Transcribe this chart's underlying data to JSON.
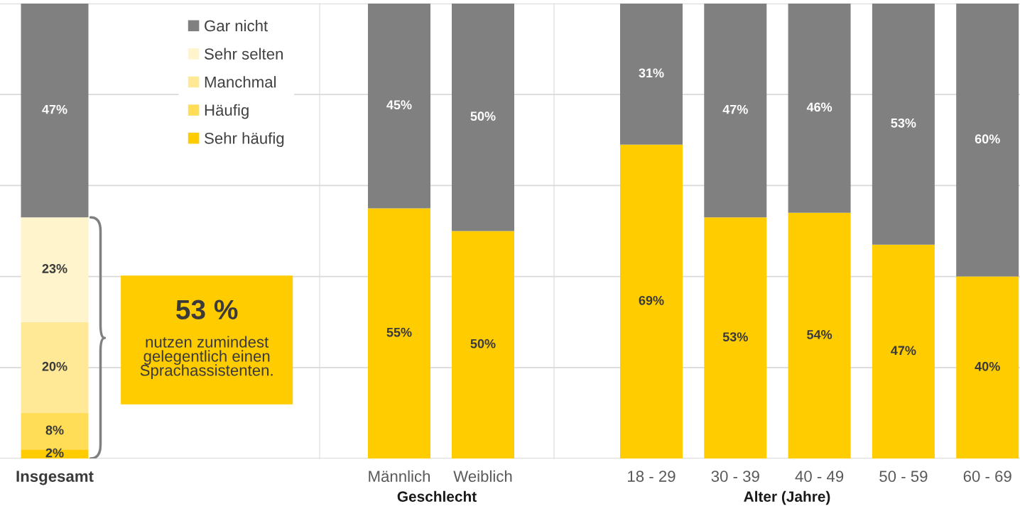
{
  "chart_data": [
    {
      "type": "bar",
      "stacked": true,
      "categories": [
        "Insgesamt"
      ],
      "grid": "y",
      "tick_labels": "x",
      "legend": "top right",
      "series": [
        {
          "name": "Sehr häufig",
          "color": "#ffcc00",
          "values": [
            2
          ],
          "value_labels": [
            "2%"
          ]
        },
        {
          "name": "Häufig",
          "color": "#ffdd57",
          "values": [
            8
          ],
          "value_labels": [
            "8%"
          ]
        },
        {
          "name": "Manchmal",
          "color": "#ffe996",
          "values": [
            20
          ],
          "value_labels": [
            "20%"
          ]
        },
        {
          "name": "Sehr selten",
          "color": "#fff4cc",
          "values": [
            23
          ],
          "value_labels": [
            "23%"
          ]
        },
        {
          "name": "Gar nicht",
          "color": "#808080",
          "values": [
            47
          ],
          "value_labels": [
            "47%"
          ]
        }
      ],
      "annotations": [
        "53 %",
        "nutzen zumindest\ngelegentlich einen\nSprachassistenten."
      ]
    },
    {
      "type": "bar",
      "stacked": true,
      "categories": [
        "Männlich",
        "Weiblich"
      ],
      "xlabel": "Geschlecht",
      "grid": "y",
      "tick_labels": "x",
      "series": [
        {
          "color": "#ffcc00",
          "values": [
            55,
            50
          ],
          "value_labels": [
            "55%",
            "50%"
          ]
        },
        {
          "color": "#808080",
          "values": [
            45,
            50
          ],
          "value_labels": [
            "45%",
            "50%"
          ]
        }
      ]
    },
    {
      "type": "bar",
      "stacked": true,
      "categories": [
        "18 - 29",
        "30 - 39",
        "40 - 49",
        "50 - 59",
        "60 - 69"
      ],
      "xlabel": "Alter (Jahre)",
      "grid": "y",
      "tick_labels": "x",
      "series": [
        {
          "color": "#ffcc00",
          "values": [
            69,
            53,
            54,
            47,
            40
          ],
          "value_labels": [
            "69%",
            "53%",
            "54%",
            "47%",
            "40%"
          ]
        },
        {
          "color": "#808080",
          "values": [
            31,
            47,
            46,
            53,
            60
          ],
          "value_labels": [
            "31%",
            "47%",
            "46%",
            "53%",
            "60%"
          ]
        }
      ]
    }
  ]
}
